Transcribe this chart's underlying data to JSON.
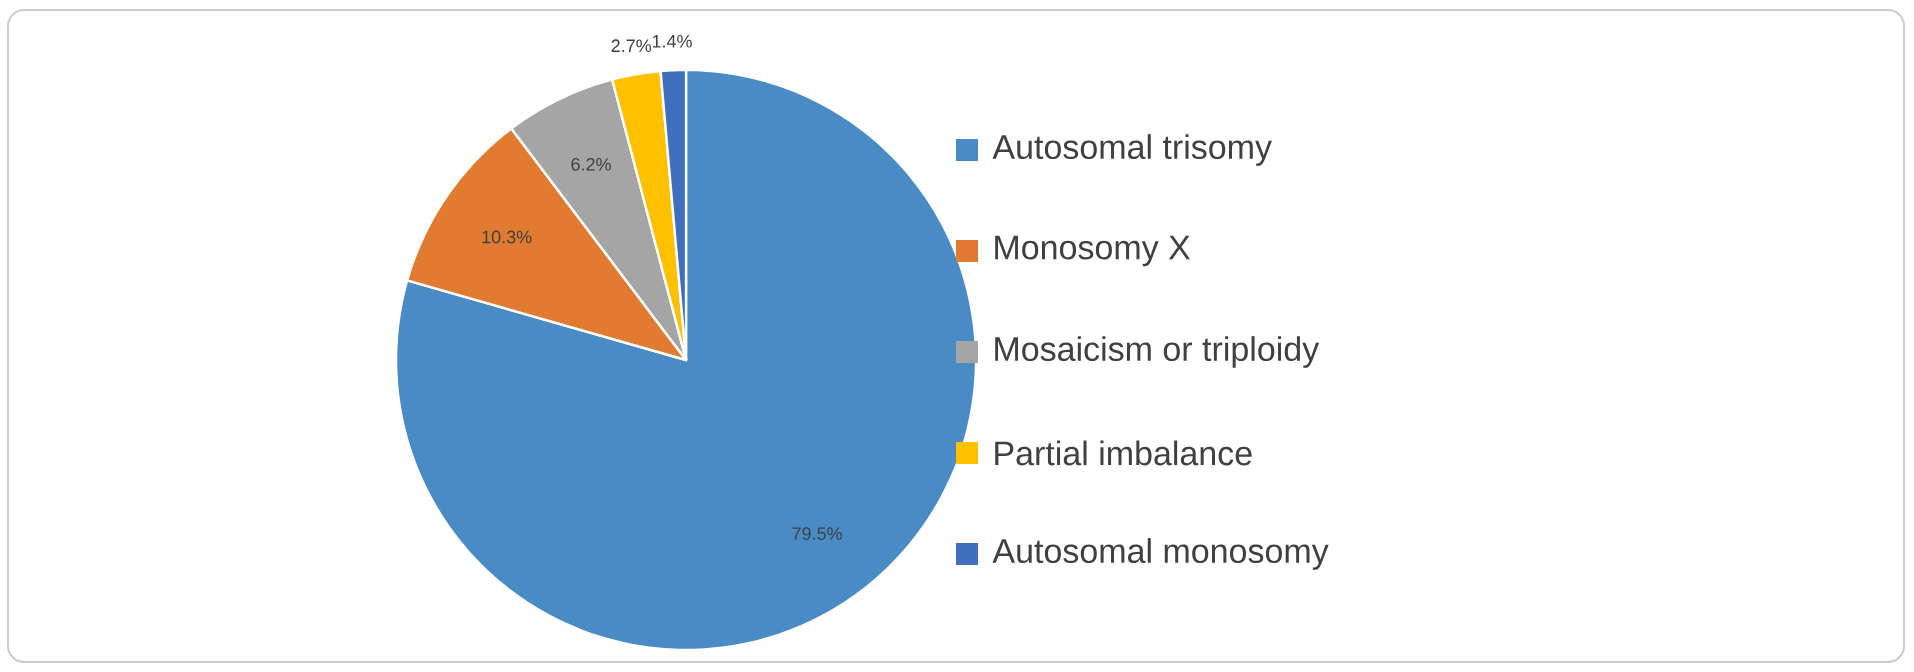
{
  "chart_data": {
    "type": "pie",
    "categories": [
      "Autosomal trisomy",
      "Monosomy X",
      "Mosaicism or triploidy",
      "Partial imbalance",
      "Autosomal monosomy"
    ],
    "values": [
      79.5,
      10.3,
      6.2,
      2.7,
      1.4
    ],
    "colors": [
      "#4a8bc6",
      "#e07b31",
      "#a5a5a5",
      "#ffc000",
      "#3f6fbf"
    ],
    "value_labels": [
      "79.5%",
      "10.3%",
      "6.2%",
      "2.7%",
      "1.4%"
    ],
    "legend": "right"
  }
}
